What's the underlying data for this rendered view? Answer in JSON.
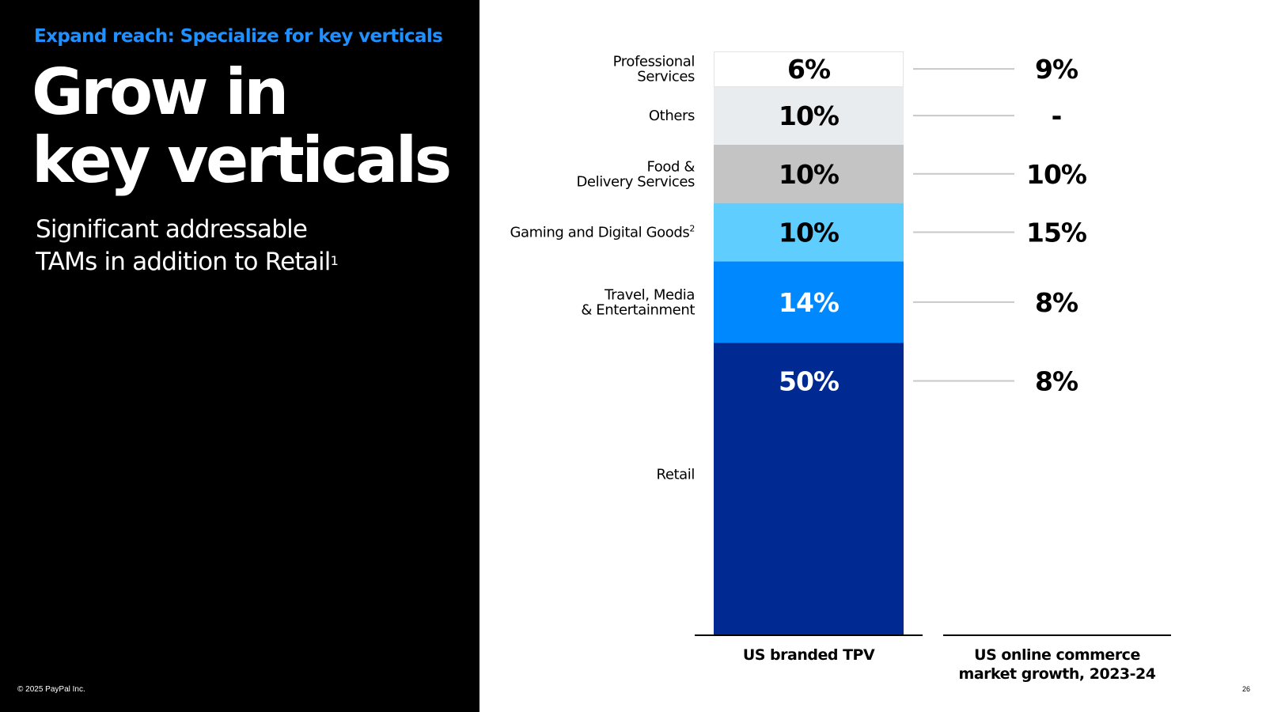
{
  "slide": {
    "eyebrow": "Expand reach: Specialize for key verticals",
    "headline_line1": "Grow in",
    "headline_line2": "key verticals",
    "subhead_line1": "Significant addressable",
    "subhead_line2": "TAMs in addition to Retail",
    "subhead_footnote": "1",
    "copyright": "© 2025 PayPal Inc.",
    "page_number": "26",
    "accent_color": "#1E90FF"
  },
  "chart_data": {
    "type": "bar",
    "stacked": true,
    "categories": [
      "Retail",
      "Travel, Media & Entertainment",
      "Gaming and Digital Goods",
      "Food & Delivery Services",
      "Others",
      "Professional Services"
    ],
    "category_label_lines": [
      [
        "Retail"
      ],
      [
        "Travel, Media",
        "& Entertainment"
      ],
      [
        "Gaming and Digital Goods"
      ],
      [
        "Food &",
        "Delivery Services"
      ],
      [
        "Others"
      ],
      [
        "Professional",
        "Services"
      ]
    ],
    "category_footnotes": [
      "",
      "",
      "2",
      "",
      "",
      ""
    ],
    "series": [
      {
        "name": "US branded TPV",
        "values": [
          50,
          14,
          10,
          10,
          10,
          6
        ],
        "labels": [
          "50%",
          "14%",
          "10%",
          "10%",
          "10%",
          "6%"
        ]
      },
      {
        "name": "US online commerce market growth, 2023-24",
        "values": [
          8,
          8,
          15,
          10,
          null,
          9
        ],
        "labels": [
          "8%",
          "8%",
          "15%",
          "10%",
          "-",
          "9%"
        ]
      }
    ],
    "x_axis_titles": [
      [
        "US branded TPV"
      ],
      [
        "US online commerce",
        "market growth, 2023-24"
      ]
    ],
    "colors": [
      "#002991",
      "#0088FF",
      "#60CDFF",
      "#C4C4C4",
      "#E9ECEF",
      "#FFFFFF"
    ],
    "text_colors": [
      "#FFFFFF",
      "#FFFFFF",
      "#000000",
      "#000000",
      "#000000",
      "#000000"
    ],
    "connector_color": "#C8C8C8",
    "ylim": [
      0,
      100
    ]
  }
}
